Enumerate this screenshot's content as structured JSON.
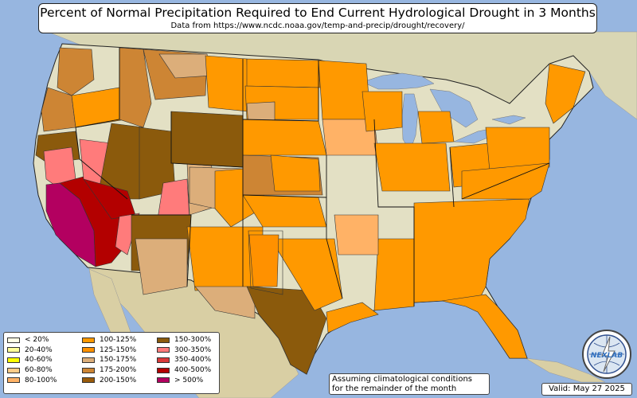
{
  "title": "Percent of Normal Precipitation Required to End Current Hydrological Drought in 3 Months",
  "subtitle": "Data from https://www.ncdc.noaa.gov/temp-and-precip/drought/recovery/",
  "note_line1": "Assuming climatological conditions",
  "note_line2": "for the remainder of the month",
  "valid_label": "Valid: May 27 2025",
  "logo_text": "NEXLAB",
  "colors": {
    "ocean": "#97b6e0",
    "land": "#e3e0c4",
    "land_dark": "#c9c6a0",
    "state_line": "#222222",
    "county_line": "#333333"
  },
  "legend": [
    {
      "label": "< 20%",
      "color": "#ffffe6"
    },
    {
      "label": "20-40%",
      "color": "#ffff99"
    },
    {
      "label": "40-60%",
      "color": "#ffff00"
    },
    {
      "label": "60-80%",
      "color": "#ffcc88"
    },
    {
      "label": "80-100%",
      "color": "#ffb266"
    },
    {
      "label": "100-125%",
      "color": "#ff9900"
    },
    {
      "label": "125-150%",
      "color": "#ff9100"
    },
    {
      "label": "150-175%",
      "color": "#dcae7a"
    },
    {
      "label": "175-200%",
      "color": "#cd8534"
    },
    {
      "label": "200-150%",
      "color": "#9a5b0a"
    },
    {
      "label": "150-300%",
      "color": "#8b5a0c"
    },
    {
      "label": "300-350%",
      "color": "#ff7b7b"
    },
    {
      "label": "350-400%",
      "color": "#d93a3a"
    },
    {
      "label": "400-500%",
      "color": "#b30000"
    },
    {
      "label": "> 500%",
      "color": "#b30060"
    }
  ]
}
